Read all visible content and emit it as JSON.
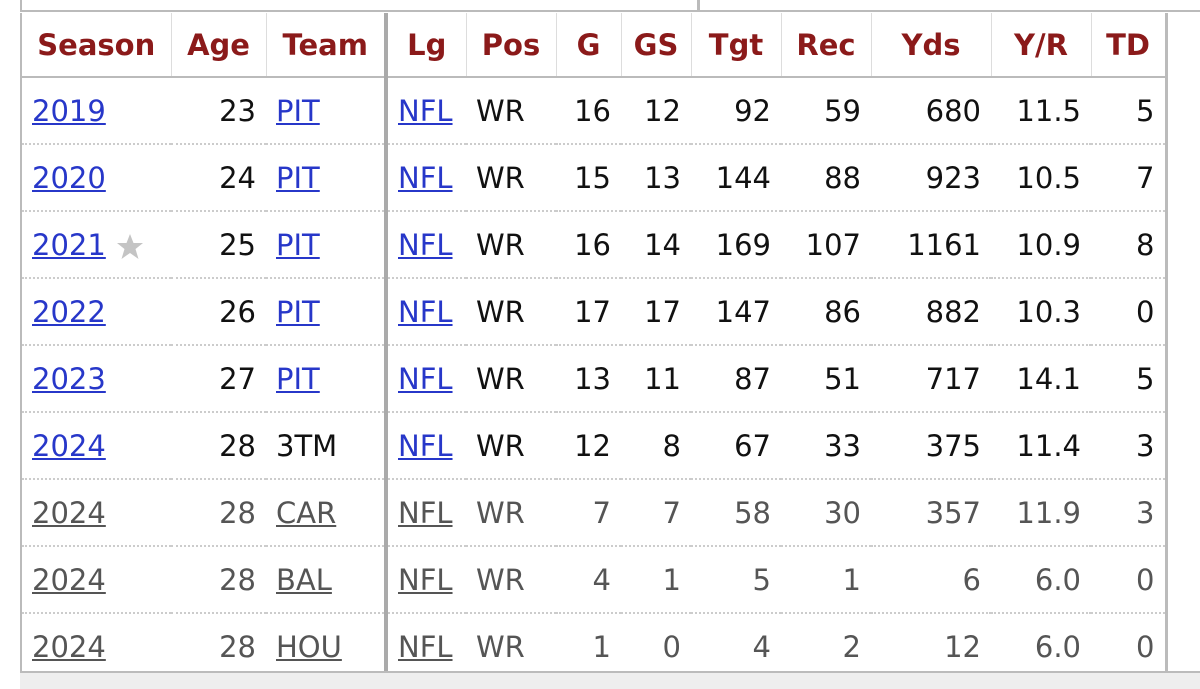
{
  "table": {
    "columns": [
      "Season",
      "Age",
      "Team",
      "Lg",
      "Pos",
      "G",
      "GS",
      "Tgt",
      "Rec",
      "Yds",
      "Y/R",
      "TD"
    ],
    "rows": [
      [
        "2019",
        "23",
        "PIT",
        "NFL",
        "WR",
        "16",
        "12",
        "92",
        "59",
        "680",
        "11.5",
        "5"
      ],
      [
        "2020",
        "24",
        "PIT",
        "NFL",
        "WR",
        "15",
        "13",
        "144",
        "88",
        "923",
        "10.5",
        "7"
      ],
      [
        "2021",
        "25",
        "PIT",
        "NFL",
        "WR",
        "16",
        "14",
        "169",
        "107",
        "1161",
        "10.9",
        "8"
      ],
      [
        "2022",
        "26",
        "PIT",
        "NFL",
        "WR",
        "17",
        "17",
        "147",
        "86",
        "882",
        "10.3",
        "0"
      ],
      [
        "2023",
        "27",
        "PIT",
        "NFL",
        "WR",
        "13",
        "11",
        "87",
        "51",
        "717",
        "14.1",
        "5"
      ],
      [
        "2024",
        "28",
        "3TM",
        "NFL",
        "WR",
        "12",
        "8",
        "67",
        "33",
        "375",
        "11.4",
        "3"
      ],
      [
        "2024",
        "28",
        "CAR",
        "NFL",
        "WR",
        "7",
        "7",
        "58",
        "30",
        "357",
        "11.9",
        "3"
      ],
      [
        "2024",
        "28",
        "BAL",
        "NFL",
        "WR",
        "4",
        "1",
        "5",
        "1",
        "6",
        "6.0",
        "0"
      ],
      [
        "2024",
        "28",
        "HOU",
        "NFL",
        "WR",
        "1",
        "0",
        "4",
        "2",
        "12",
        "6.0",
        "0"
      ]
    ]
  }
}
